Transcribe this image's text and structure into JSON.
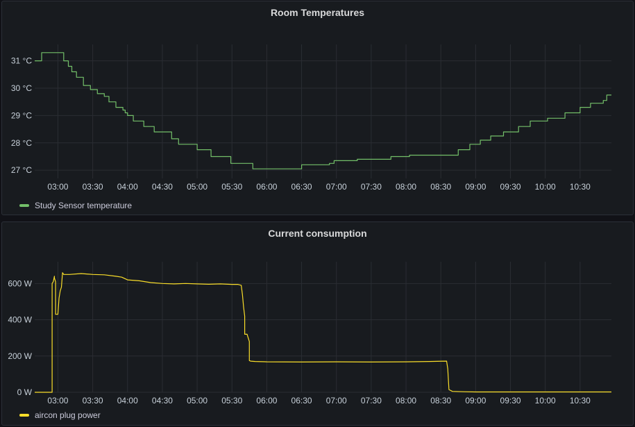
{
  "chart_data": [
    {
      "type": "line",
      "title": "Room Temperatures",
      "xlabel": "",
      "ylabel": "",
      "x_ticks": [
        "03:00",
        "03:30",
        "04:00",
        "04:30",
        "05:00",
        "05:30",
        "06:00",
        "06:30",
        "07:00",
        "07:30",
        "08:00",
        "08:30",
        "09:00",
        "09:30",
        "10:00",
        "10:30"
      ],
      "y_ticks": [
        "27 °C",
        "28 °C",
        "29 °C",
        "30 °C",
        "31 °C"
      ],
      "ylim": [
        26.7,
        31.6
      ],
      "xlim": [
        "02:40",
        "10:57"
      ],
      "grid": true,
      "legend": "bottom-left",
      "series": [
        {
          "name": "Study Sensor temperature",
          "color": "#73bf69",
          "step": true,
          "x": [
            "02:40",
            "02:46",
            "03:05",
            "03:09",
            "03:12",
            "03:16",
            "03:22",
            "03:28",
            "03:34",
            "03:40",
            "03:44",
            "03:50",
            "03:56",
            "03:58",
            "04:00",
            "04:05",
            "04:14",
            "04:23",
            "04:35",
            "04:38",
            "04:44",
            "05:00",
            "05:12",
            "05:29",
            "05:48",
            "06:10",
            "06:30",
            "06:54",
            "06:58",
            "07:18",
            "07:47",
            "08:03",
            "08:45",
            "08:55",
            "09:04",
            "09:13",
            "09:24",
            "09:37",
            "09:47",
            "10:02",
            "10:17",
            "10:30",
            "10:39",
            "10:50",
            "10:53",
            "10:57"
          ],
          "y": [
            31.0,
            31.3,
            31.0,
            30.8,
            30.6,
            30.4,
            30.1,
            29.95,
            29.8,
            29.7,
            29.5,
            29.3,
            29.2,
            29.1,
            29.0,
            28.8,
            28.6,
            28.4,
            28.4,
            28.15,
            27.95,
            27.75,
            27.5,
            27.25,
            27.05,
            27.05,
            27.2,
            27.25,
            27.35,
            27.4,
            27.5,
            27.55,
            27.75,
            27.95,
            28.1,
            28.25,
            28.4,
            28.6,
            28.8,
            28.9,
            29.1,
            29.3,
            29.45,
            29.55,
            29.75,
            29.75
          ]
        }
      ]
    },
    {
      "type": "line",
      "title": "Current consumption",
      "xlabel": "",
      "ylabel": "",
      "x_ticks": [
        "03:00",
        "03:30",
        "04:00",
        "04:30",
        "05:00",
        "05:30",
        "06:00",
        "06:30",
        "07:00",
        "07:30",
        "08:00",
        "08:30",
        "09:00",
        "09:30",
        "10:00",
        "10:30"
      ],
      "y_ticks": [
        "0 W",
        "200 W",
        "400 W",
        "600 W"
      ],
      "ylim": [
        0,
        720
      ],
      "xlim": [
        "02:40",
        "10:57"
      ],
      "grid": true,
      "legend": "bottom-left",
      "series": [
        {
          "name": "aircon plug power",
          "color": "#fade2a",
          "step": false,
          "x": [
            "02:40",
            "02:55",
            "02:55",
            "02:56",
            "02:57",
            "02:57",
            "02:58",
            "02:58",
            "02:59",
            "03:00",
            "03:01",
            "03:02",
            "03:03",
            "03:04",
            "03:05",
            "03:10",
            "03:20",
            "03:30",
            "03:40",
            "03:50",
            "03:55",
            "04:00",
            "04:10",
            "04:20",
            "04:30",
            "04:40",
            "04:50",
            "05:00",
            "05:10",
            "05:20",
            "05:30",
            "05:35",
            "05:38",
            "05:39",
            "05:40",
            "05:41",
            "05:41",
            "05:43",
            "05:45",
            "05:45",
            "05:46",
            "05:50",
            "06:00",
            "06:30",
            "07:00",
            "07:30",
            "08:00",
            "08:20",
            "08:35",
            "08:35",
            "08:36",
            "08:37",
            "08:40",
            "08:50",
            "09:00",
            "10:00",
            "10:57"
          ],
          "y": [
            0,
            0,
            600,
            610,
            640,
            630,
            610,
            430,
            430,
            430,
            520,
            560,
            580,
            660,
            650,
            650,
            655,
            650,
            648,
            640,
            635,
            620,
            615,
            605,
            600,
            598,
            600,
            598,
            596,
            598,
            595,
            595,
            590,
            540,
            470,
            420,
            320,
            320,
            280,
            175,
            172,
            170,
            168,
            167,
            168,
            167,
            168,
            170,
            172,
            170,
            130,
            15,
            5,
            3,
            2,
            2,
            2
          ]
        }
      ]
    }
  ]
}
